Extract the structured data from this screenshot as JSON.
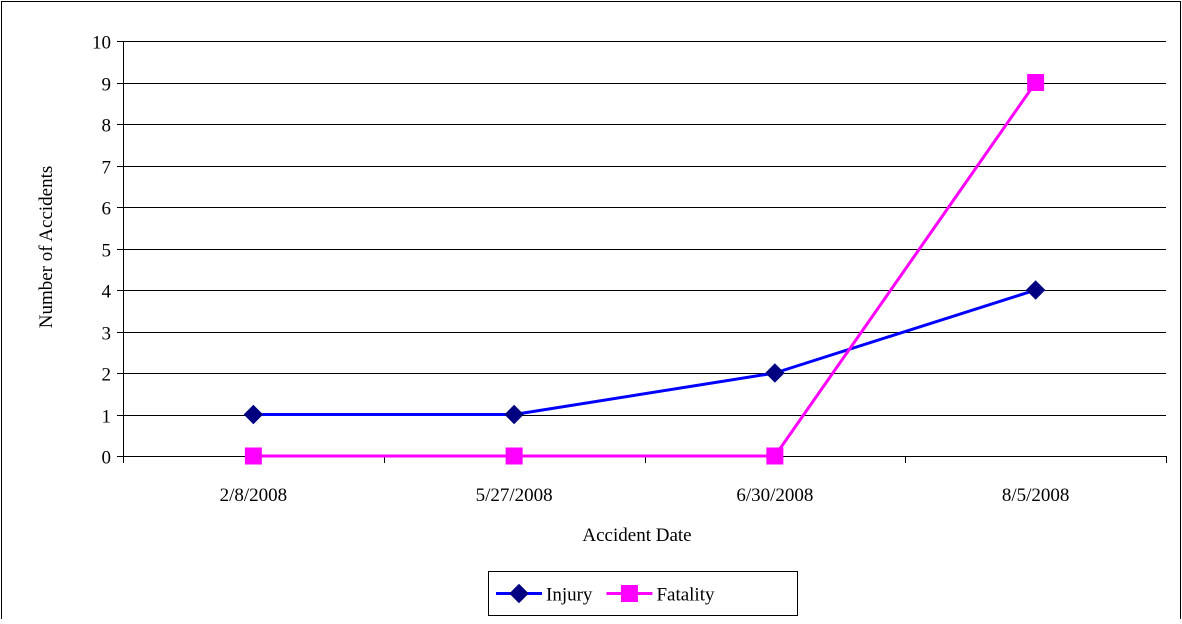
{
  "chart_data": {
    "type": "line",
    "title": "",
    "xlabel": "Accident Date",
    "ylabel": "Number of Accidents",
    "categories": [
      "2/8/2008",
      "5/27/2008",
      "6/30/2008",
      "8/5/2008"
    ],
    "ylim": [
      0,
      10
    ],
    "yticks": [
      0,
      1,
      2,
      3,
      4,
      5,
      6,
      7,
      8,
      9,
      10
    ],
    "grid": true,
    "legend_position": "bottom",
    "series": [
      {
        "name": "Injury",
        "values": [
          1,
          1,
          2,
          4
        ],
        "color": "#0000ff",
        "marker": "diamond",
        "marker_color": "#000080"
      },
      {
        "name": "Fatality",
        "values": [
          0,
          0,
          0,
          9
        ],
        "color": "#ff00ff",
        "marker": "square",
        "marker_color": "#ff00ff"
      }
    ]
  }
}
